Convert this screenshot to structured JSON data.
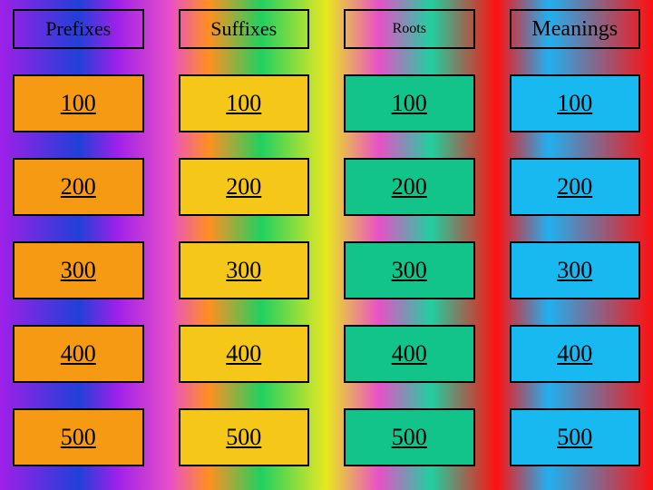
{
  "board": {
    "headers": [
      {
        "label": "Prefixes",
        "bg": "transparent",
        "fontsize": "22px"
      },
      {
        "label": "Suffixes",
        "bg": "transparent",
        "fontsize": "22px"
      },
      {
        "label": "Roots",
        "bg": "transparent",
        "fontsize": "16px"
      },
      {
        "label": "Meanings",
        "bg": "transparent",
        "fontsize": "24px"
      }
    ],
    "column_colors": [
      "#f59a12",
      "#f5c718",
      "#12c48a",
      "#18b8f0"
    ],
    "values": [
      "100",
      "200",
      "300",
      "400",
      "500"
    ],
    "header_border": "#000000",
    "cell_border": "#000000",
    "cell_text_color": "#000000",
    "cell_fontsize": "26px",
    "underline": true
  }
}
